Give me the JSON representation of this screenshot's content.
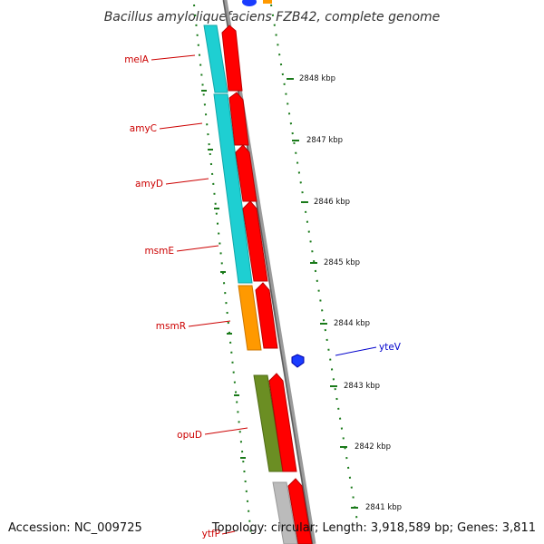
{
  "title": "Bacillus amyloliquefaciens FZB42, complete genome",
  "accession": "Accession: NC_009725",
  "topology": "Topology: circular; Length: 3,918,589 bp; Genes: 3,811",
  "colors": {
    "red_gene": "#ff0000",
    "cyan_gene": "#1ecfd2",
    "orange_gene": "#ff9900",
    "olive_gene": "#6b8e23",
    "grey_gene": "#bbbbbb",
    "blue_gene": "#1a3cff",
    "backbone": "#888888",
    "tick_green": "#1a7a1a",
    "label_red": "#cc0000",
    "label_blue": "#0000cc"
  },
  "ticks": [
    {
      "label": "2848 kbp"
    },
    {
      "label": "2847 kbp"
    },
    {
      "label": "2846 kbp"
    },
    {
      "label": "2845 kbp"
    },
    {
      "label": "2844 kbp"
    },
    {
      "label": "2843 kbp"
    },
    {
      "label": "2842 kbp"
    },
    {
      "label": "2841 kbp"
    }
  ],
  "gene_labels": [
    {
      "name": "melA",
      "color": "red"
    },
    {
      "name": "amyC",
      "color": "red"
    },
    {
      "name": "amyD",
      "color": "red"
    },
    {
      "name": "msmE",
      "color": "red"
    },
    {
      "name": "msmR",
      "color": "red"
    },
    {
      "name": "opuD",
      "color": "red"
    },
    {
      "name": "ytfP",
      "color": "red"
    },
    {
      "name": "yteV",
      "color": "blue"
    }
  ]
}
